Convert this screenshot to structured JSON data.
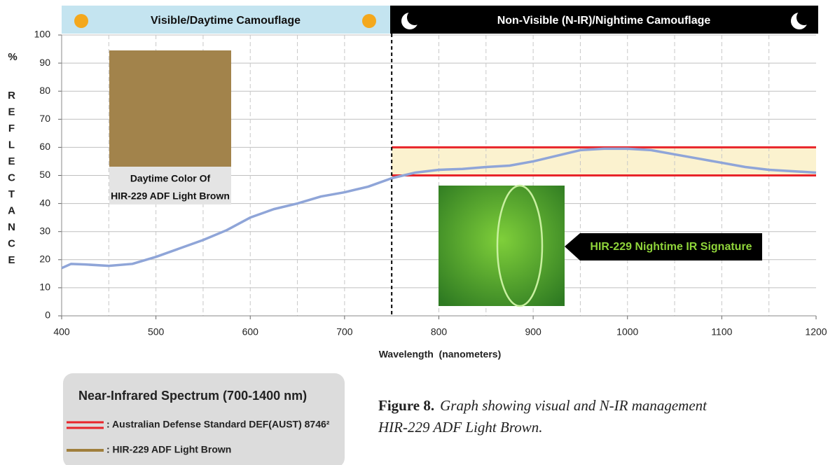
{
  "header": {
    "left": "Visible/Daytime Camouflage",
    "right": "Non-Visible (N-IR)/Nightime Camouflage"
  },
  "chart_data": {
    "type": "line",
    "y_label": "%",
    "y_label_vertical": "REFLECTANCE",
    "x_label": "Wavelength  (nanometers)",
    "x": [
      400,
      410,
      425,
      450,
      475,
      500,
      525,
      550,
      575,
      600,
      625,
      650,
      675,
      700,
      725,
      750,
      775,
      800,
      825,
      850,
      875,
      900,
      925,
      950,
      975,
      1000,
      1025,
      1050,
      1075,
      1100,
      1125,
      1150,
      1175,
      1200
    ],
    "series": [
      {
        "color": "#8fa5d8",
        "values": [
          17,
          18.5,
          18.3,
          17.8,
          18.5,
          21,
          24,
          27,
          30.5,
          35,
          38,
          40,
          42.5,
          44,
          46,
          49,
          51,
          52,
          52.3,
          53,
          53.5,
          55,
          57,
          59,
          59.5,
          59.5,
          59,
          57.5,
          56,
          54.5,
          53,
          52,
          51.5,
          51
        ]
      }
    ],
    "xlim": [
      400,
      1200
    ],
    "ylim": [
      0,
      100
    ],
    "xticks": [
      400,
      500,
      600,
      700,
      800,
      900,
      1000,
      1100,
      1200
    ],
    "yticks": [
      0,
      10,
      20,
      30,
      40,
      50,
      60,
      70,
      80,
      90,
      100
    ],
    "grid": true,
    "x_gridlines": [
      450,
      500,
      550,
      600,
      650,
      700,
      800,
      850,
      900,
      950,
      1000,
      1050,
      1100,
      1150
    ],
    "divider_x": 750,
    "reference_band": {
      "color": "#e8242a",
      "fill": "#fbf2cf",
      "values": [
        50,
        60
      ],
      "x_range": [
        750,
        1200
      ]
    }
  },
  "swatch": {
    "color": "#a2834b",
    "label": [
      "Daytime Color Of",
      "HIR-229 ADF Light Brown"
    ]
  },
  "callout": "HIR-229 Nightime IR Signature",
  "legend": {
    "title": "Near-Infrared Spectrum (700-1400 nm)",
    "items": [
      {
        "label": ": Australian Defense Standard DEF(AUST) 8746²",
        "color": "#e8242a"
      },
      {
        "label": ": HIR-229 ADF Light Brown",
        "color": "#a07f3c"
      }
    ]
  },
  "caption": {
    "label": "Figure 8.",
    "text": [
      "Graph showing visual and N-IR management",
      "HIR-229 ADF Light Brown."
    ]
  }
}
